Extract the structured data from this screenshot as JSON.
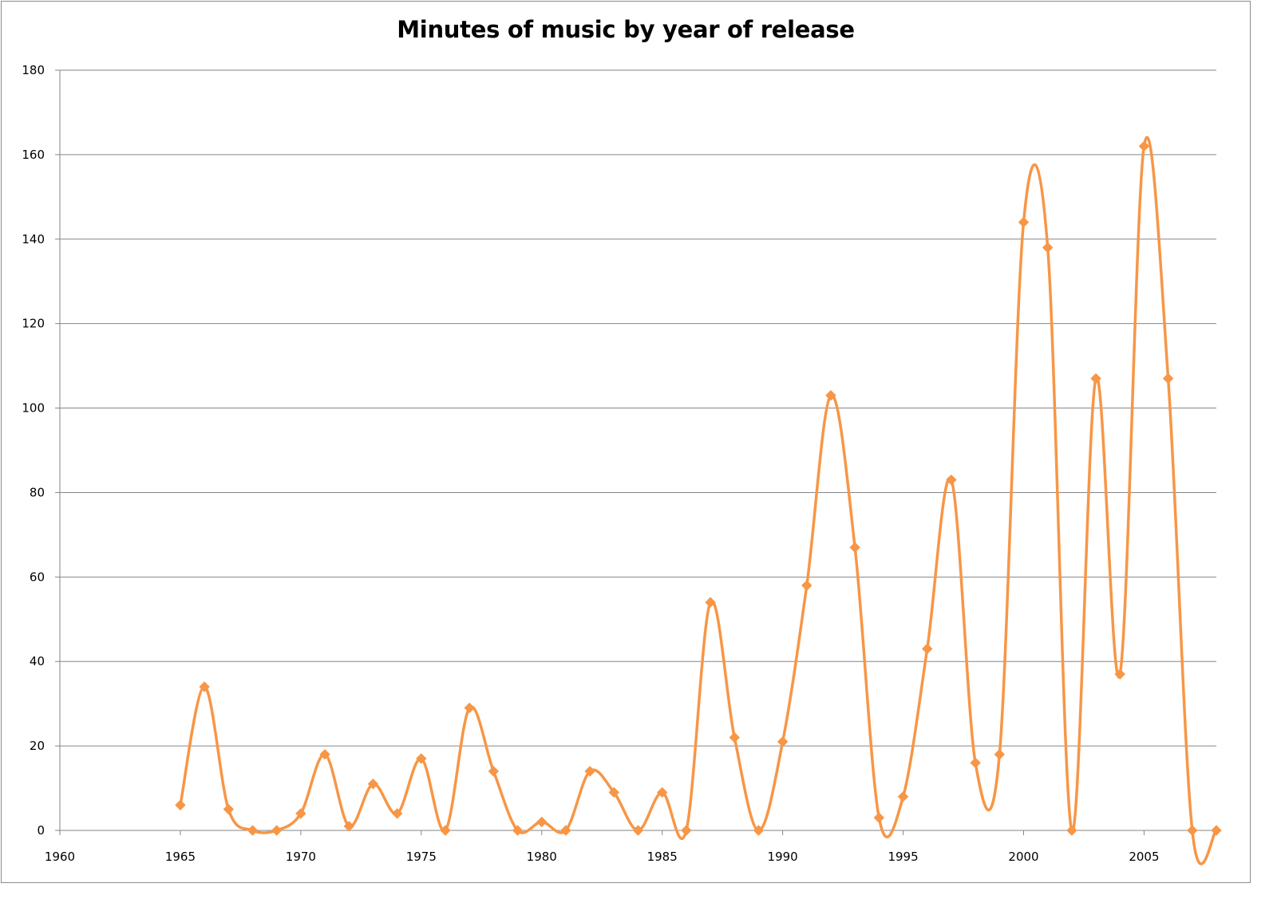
{
  "chart_data": {
    "type": "line",
    "title": "Minutes of music by year of release",
    "xlabel": "",
    "ylabel": "",
    "xlim": [
      1960,
      2008
    ],
    "ylim": [
      0,
      180
    ],
    "x_ticks": [
      "1960",
      "1965",
      "1970",
      "1975",
      "1980",
      "1985",
      "1990",
      "1995",
      "2000",
      "2005"
    ],
    "y_ticks": [
      "0",
      "20",
      "40",
      "60",
      "80",
      "100",
      "120",
      "140",
      "160",
      "180"
    ],
    "grid": "horizontal",
    "legend": "none",
    "line_style": "smoothed",
    "marker": "diamond",
    "series": [
      {
        "color": "#f79646",
        "x": [
          1965,
          1966,
          1967,
          1968,
          1969,
          1970,
          1971,
          1972,
          1973,
          1974,
          1975,
          1976,
          1977,
          1978,
          1979,
          1980,
          1981,
          1982,
          1983,
          1984,
          1985,
          1986,
          1987,
          1988,
          1989,
          1990,
          1991,
          1992,
          1993,
          1994,
          1995,
          1996,
          1997,
          1998,
          1999,
          2000,
          2001,
          2002,
          2003,
          2004,
          2005,
          2006,
          2007,
          2008
        ],
        "values": [
          6,
          34,
          5,
          0,
          0,
          4,
          18,
          1,
          11,
          4,
          17,
          0,
          29,
          14,
          0,
          2,
          0,
          14,
          9,
          0,
          9,
          0,
          54,
          22,
          0,
          21,
          58,
          103,
          67,
          3,
          8,
          43,
          83,
          16,
          18,
          144,
          138,
          0,
          107,
          37,
          162,
          107,
          0,
          0
        ]
      }
    ],
    "colors": {
      "series": "#f79646",
      "grid": "#868686",
      "axis": "#868686",
      "frame": "#8c8c8c"
    }
  }
}
